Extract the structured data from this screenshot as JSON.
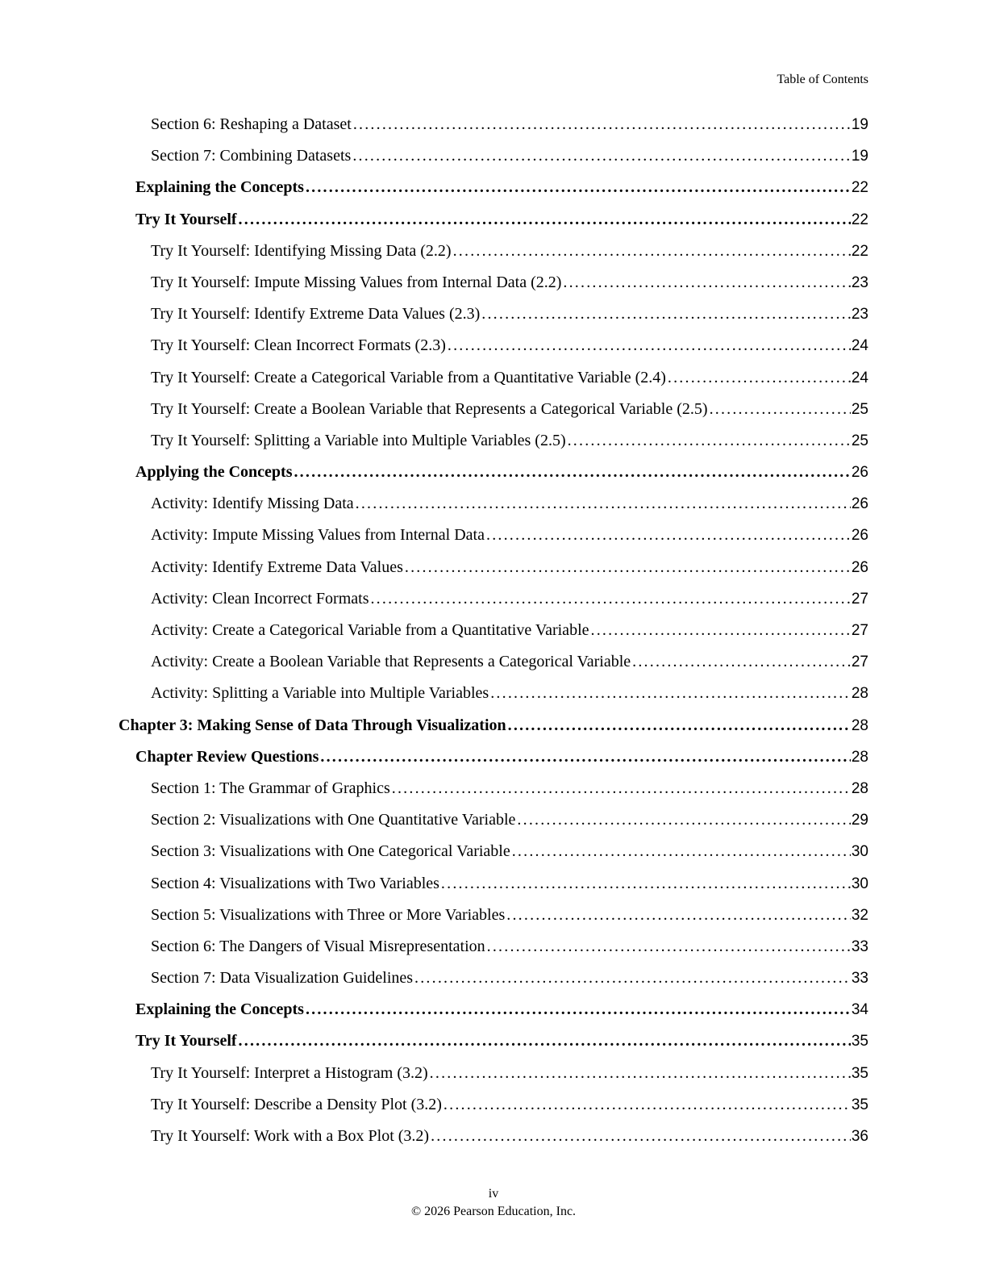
{
  "page": {
    "header_label": "Table of Contents",
    "footer": {
      "page_number_label": "iv",
      "copyright": "© 2026 Pearson Education, Inc."
    }
  },
  "toc": {
    "entries": [
      {
        "title": "Section 6: Reshaping a Dataset",
        "page": "19",
        "level": 2,
        "bold": false
      },
      {
        "title": "Section 7: Combining Datasets",
        "page": "19",
        "level": 2,
        "bold": false
      },
      {
        "title": "Explaining the Concepts",
        "page": "22",
        "level": 1,
        "bold": true
      },
      {
        "title": "Try It Yourself",
        "page": "22",
        "level": 1,
        "bold": true
      },
      {
        "title": "Try It Yourself: Identifying Missing Data (2.2)",
        "page": "22",
        "level": 2,
        "bold": false
      },
      {
        "title": "Try It Yourself: Impute Missing Values from Internal Data (2.2)",
        "page": "23",
        "level": 2,
        "bold": false
      },
      {
        "title": "Try It Yourself: Identify Extreme Data Values (2.3)",
        "page": "23",
        "level": 2,
        "bold": false
      },
      {
        "title": "Try It Yourself: Clean Incorrect Formats (2.3)",
        "page": "24",
        "level": 2,
        "bold": false
      },
      {
        "title": "Try It Yourself: Create a Categorical Variable from a Quantitative Variable (2.4)",
        "page": "24",
        "level": 2,
        "bold": false
      },
      {
        "title": "Try It Yourself: Create a Boolean Variable that Represents a Categorical Variable (2.5)",
        "page": "25",
        "level": 2,
        "bold": false
      },
      {
        "title": "Try It Yourself: Splitting a Variable into Multiple Variables (2.5)",
        "page": "25",
        "level": 2,
        "bold": false
      },
      {
        "title": "Applying the Concepts",
        "page": "26",
        "level": 1,
        "bold": true
      },
      {
        "title": "Activity: Identify Missing Data",
        "page": "26",
        "level": 2,
        "bold": false
      },
      {
        "title": "Activity: Impute Missing Values from Internal Data",
        "page": "26",
        "level": 2,
        "bold": false
      },
      {
        "title": "Activity: Identify Extreme Data Values",
        "page": "26",
        "level": 2,
        "bold": false
      },
      {
        "title": "Activity: Clean Incorrect Formats",
        "page": "27",
        "level": 2,
        "bold": false
      },
      {
        "title": "Activity: Create a Categorical Variable from a Quantitative Variable",
        "page": "27",
        "level": 2,
        "bold": false
      },
      {
        "title": "Activity: Create a Boolean Variable that Represents a Categorical Variable",
        "page": "27",
        "level": 2,
        "bold": false
      },
      {
        "title": "Activity: Splitting a Variable into Multiple Variables",
        "page": "28",
        "level": 2,
        "bold": false
      },
      {
        "title": "Chapter 3: Making Sense of Data Through Visualization",
        "page": "28",
        "level": 0,
        "bold": true
      },
      {
        "title": "Chapter Review Questions",
        "page": "28",
        "level": 1,
        "bold": true
      },
      {
        "title": "Section 1: The Grammar of Graphics",
        "page": "28",
        "level": 2,
        "bold": false
      },
      {
        "title": "Section 2: Visualizations with One Quantitative Variable",
        "page": "29",
        "level": 2,
        "bold": false
      },
      {
        "title": "Section 3: Visualizations with One Categorical Variable",
        "page": "30",
        "level": 2,
        "bold": false
      },
      {
        "title": "Section 4: Visualizations with Two Variables",
        "page": "30",
        "level": 2,
        "bold": false
      },
      {
        "title": "Section 5: Visualizations with Three or More Variables",
        "page": "32",
        "level": 2,
        "bold": false
      },
      {
        "title": "Section 6: The Dangers of Visual Misrepresentation",
        "page": "33",
        "level": 2,
        "bold": false
      },
      {
        "title": "Section 7: Data Visualization Guidelines",
        "page": "33",
        "level": 2,
        "bold": false
      },
      {
        "title": "Explaining the Concepts",
        "page": "34",
        "level": 1,
        "bold": true
      },
      {
        "title": "Try It Yourself",
        "page": "35",
        "level": 1,
        "bold": true
      },
      {
        "title": "Try It Yourself: Interpret a Histogram (3.2)",
        "page": "35",
        "level": 2,
        "bold": false
      },
      {
        "title": "Try It Yourself: Describe a Density Plot (3.2)",
        "page": "35",
        "level": 2,
        "bold": false
      },
      {
        "title": "Try It Yourself: Work with a Box Plot (3.2)",
        "page": "36",
        "level": 2,
        "bold": false
      }
    ]
  }
}
